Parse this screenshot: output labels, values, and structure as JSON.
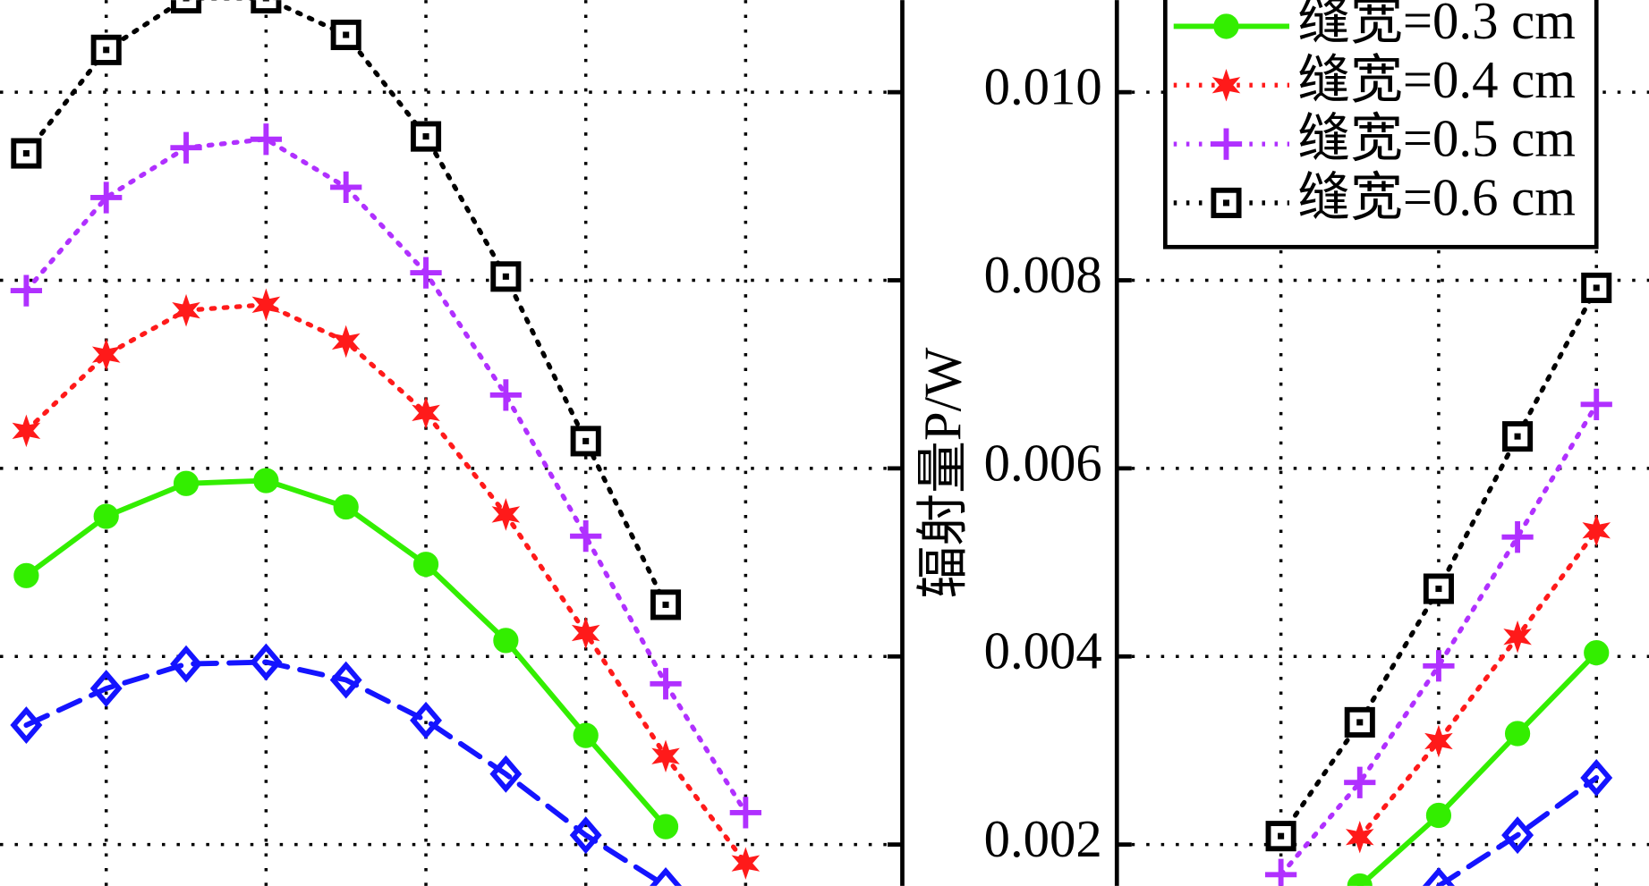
{
  "chart_data": [
    {
      "type": "line",
      "ylim": [
        0.00156,
        0.01098
      ],
      "yticks": [
        0.002,
        0.004,
        0.006,
        0.008,
        {
          "value": 0.01,
          "label": "0.010"
        }
      ],
      "show_tick_labels": false,
      "grid": true,
      "series": [
        {
          "color": "#1414ff",
          "marker": "diamond",
          "dash": "dashed",
          "values": [
            0.00327,
            0.00366,
            0.00392,
            0.00394,
            0.00375,
            0.00332,
            0.00275,
            0.0021,
            0.00156,
            null
          ]
        },
        {
          "name": "缝宽=0.3 cm",
          "color": "#33ee00",
          "marker": "circle",
          "dash": "solid",
          "values": [
            0.00486,
            0.00549,
            0.00584,
            0.00587,
            0.00559,
            0.00498,
            0.00417,
            0.00316,
            0.00219,
            null
          ]
        },
        {
          "name": "缝宽=0.4 cm",
          "color": "#ff1a1a",
          "marker": "star",
          "dash": "dotted",
          "values": [
            0.0064,
            0.00721,
            0.00768,
            0.00774,
            0.00735,
            0.00659,
            0.00551,
            0.00425,
            0.00294,
            0.0018
          ]
        },
        {
          "name": "缝宽=0.5 cm",
          "color": "#b030ff",
          "marker": "plus",
          "dash": "dotted",
          "values": [
            0.00789,
            0.00888,
            0.00941,
            0.0095,
            0.00899,
            0.00808,
            0.00678,
            0.00528,
            0.00371,
            0.00234
          ]
        },
        {
          "name": "缝宽=0.6 cm",
          "color": "#000000",
          "marker": "square",
          "dash": "dotted",
          "values": [
            0.00935,
            0.01045,
            0.011,
            0.011,
            0.01061,
            0.00953,
            0.00804,
            0.00629,
            0.00455,
            null
          ]
        }
      ]
    },
    {
      "type": "line",
      "ylabel": "辐射量P/W",
      "ylim": [
        0.00156,
        0.01098
      ],
      "yticks": [
        0.002,
        0.004,
        0.006,
        0.008,
        {
          "value": 0.01,
          "label": "0.010"
        }
      ],
      "show_tick_labels": true,
      "grid": true,
      "legend": "upper right",
      "series": [
        {
          "color": "#1414ff",
          "marker": "diamond",
          "dash": "dashed",
          "values": [
            null,
            null,
            0.00156,
            0.0021,
            0.00271
          ]
        },
        {
          "name": "缝宽=0.3 cm",
          "color": "#33ee00",
          "marker": "circle",
          "dash": "solid",
          "values": [
            null,
            0.00156,
            0.00231,
            0.00318,
            0.00404
          ]
        },
        {
          "name": "缝宽=0.4 cm",
          "color": "#ff1a1a",
          "marker": "star",
          "dash": "dotted",
          "values": [
            null,
            0.00208,
            0.0031,
            0.00421,
            0.00534
          ]
        },
        {
          "name": "缝宽=0.5 cm",
          "color": "#b030ff",
          "marker": "plus",
          "dash": "dotted",
          "values": [
            0.00168,
            0.00266,
            0.0039,
            0.00527,
            0.00668
          ]
        },
        {
          "name": "缝宽=0.6 cm",
          "color": "#000000",
          "marker": "square",
          "dash": "dotted",
          "values": [
            0.00209,
            0.0033,
            0.00472,
            0.00634,
            0.00792
          ]
        }
      ]
    }
  ]
}
